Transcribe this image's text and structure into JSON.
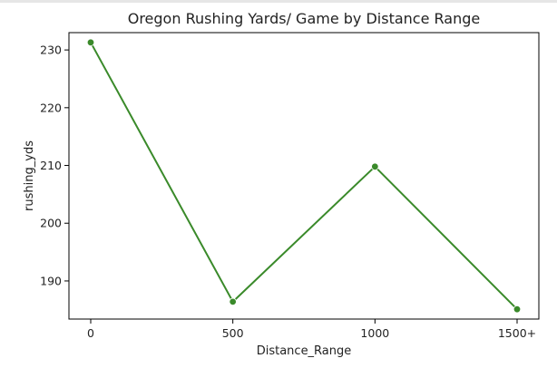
{
  "chart_data": {
    "type": "line",
    "title": "Oregon Rushing Yards/ Game by Distance Range",
    "xlabel": "Distance_Range",
    "ylabel": "rushing_yds",
    "categories": [
      "0",
      "500",
      "1000",
      "1500+"
    ],
    "series": [
      {
        "values": [
          231.3,
          186.4,
          209.8,
          185.1
        ],
        "color": "#3a8a2a",
        "marker": "circle"
      }
    ],
    "ylim": [
      183.4,
      233.0
    ],
    "yticks": [
      190,
      200,
      210,
      220,
      230
    ],
    "grid": false,
    "legend": false
  }
}
